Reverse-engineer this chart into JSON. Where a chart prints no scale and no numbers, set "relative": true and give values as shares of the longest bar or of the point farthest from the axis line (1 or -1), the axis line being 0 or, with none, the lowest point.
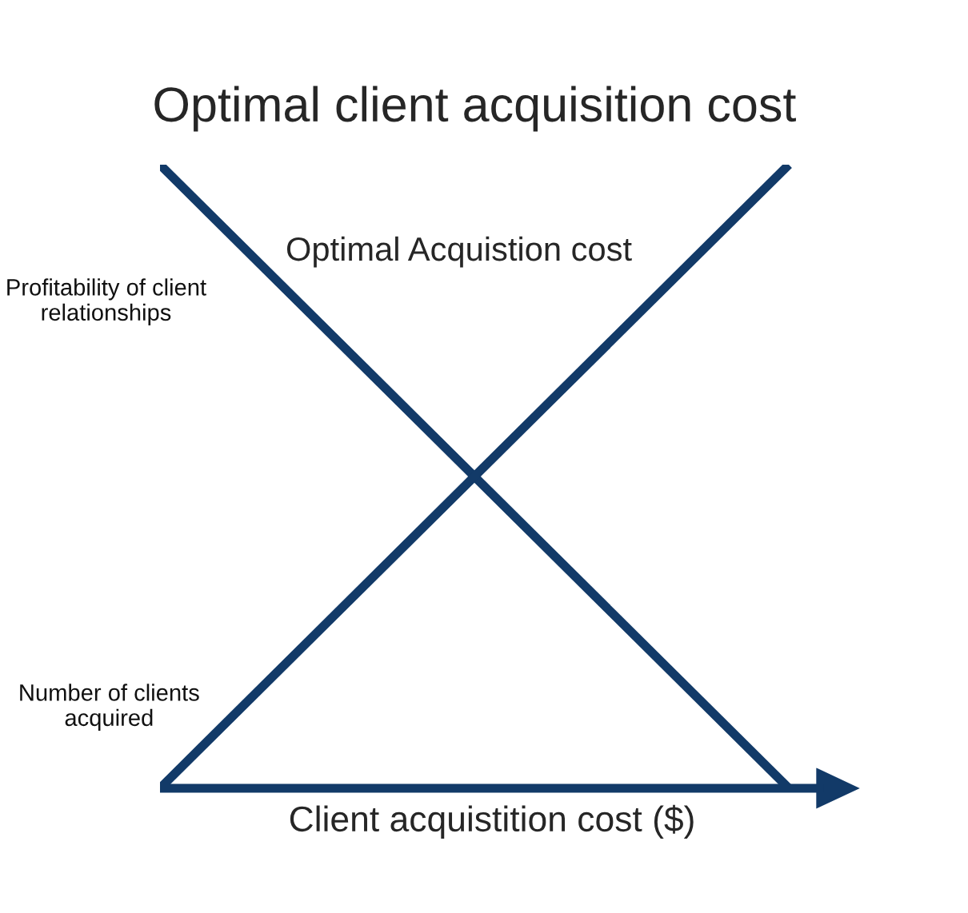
{
  "chart_data": {
    "type": "line",
    "title": "Optimal client acquisition cost",
    "xlabel": "Client acquistition cost ($)",
    "categories": [
      null,
      null
    ],
    "relative": true,
    "legend": false,
    "grid": false,
    "line_style": "solid",
    "series": [
      {
        "name": "Profitability of client relationships",
        "color": "#123a68",
        "values": [
          1,
          0
        ]
      },
      {
        "name": "Number of clients acquired",
        "color": "#123a68",
        "values": [
          0,
          1
        ]
      }
    ],
    "ref_lines": [
      {
        "axis": "y",
        "value": 0,
        "color": "#123a68",
        "line_style": "solid"
      }
    ],
    "annotations": [
      "Optimal Acquistion cost"
    ]
  }
}
